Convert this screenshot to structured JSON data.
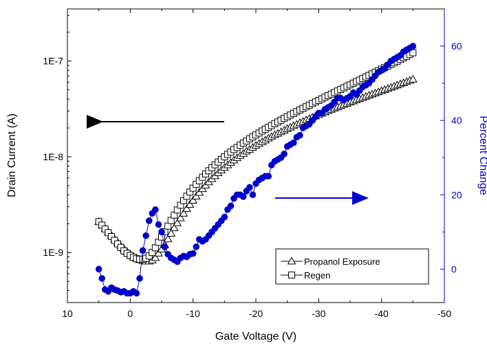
{
  "chart_data": {
    "type": "scatter",
    "xlabel": "Gate Voltage (V)",
    "ylabel_left": "Drain Current (A)",
    "ylabel_right": "Percent Change",
    "xlim": [
      10,
      -50
    ],
    "x_ticks": [
      10,
      0,
      -10,
      -20,
      -30,
      -40,
      -50
    ],
    "x_tick_labels": [
      "10",
      "0",
      "-10",
      "-20",
      "-30",
      "-40",
      "-50"
    ],
    "y_left_scale": "log",
    "y_left_lim": [
      3e-10,
      3.5e-07
    ],
    "y_left_ticks": [
      1e-09,
      1e-08,
      1e-07
    ],
    "y_left_tick_labels": [
      "1E-9",
      "1E-8",
      "1E-7"
    ],
    "y_right_lim": [
      -9,
      70
    ],
    "y_right_ticks": [
      0,
      20,
      40,
      60
    ],
    "y_right_tick_labels": [
      "0",
      "20",
      "40",
      "60"
    ],
    "right_axis_color": "#0000cc",
    "legend_position": "bottom-right",
    "series": [
      {
        "name": "Propanol Exposure",
        "axis": "left",
        "marker": "triangle-open",
        "color": "#000000",
        "x": [
          5,
          4.5,
          4,
          3.5,
          3,
          2.5,
          2,
          1.5,
          1,
          0.5,
          0,
          -0.5,
          -1,
          -1.5,
          -2,
          -2.5,
          -3,
          -3.5,
          -4,
          -4.5,
          -5,
          -5.5,
          -6,
          -6.5,
          -7,
          -7.5,
          -8,
          -8.5,
          -9,
          -9.5,
          -10,
          -10.5,
          -11,
          -11.5,
          -12,
          -12.5,
          -13,
          -13.5,
          -14,
          -14.5,
          -15,
          -15.5,
          -16,
          -16.5,
          -17,
          -17.5,
          -18,
          -18.5,
          -19,
          -19.5,
          -20,
          -20.5,
          -21,
          -21.5,
          -22,
          -22.5,
          -23,
          -23.5,
          -24,
          -24.5,
          -25,
          -25.5,
          -26,
          -26.5,
          -27,
          -27.5,
          -28,
          -28.5,
          -29,
          -29.5,
          -30,
          -30.5,
          -31,
          -31.5,
          -32,
          -32.5,
          -33,
          -33.5,
          -34,
          -34.5,
          -35,
          -35.5,
          -36,
          -36.5,
          -37,
          -37.5,
          -38,
          -38.5,
          -39,
          -39.5,
          -40,
          -40.5,
          -41,
          -41.5,
          -42,
          -42.5,
          -43,
          -43.5,
          -44,
          -44.5,
          -45
        ],
        "y": [
          2.1e-09,
          1.93e-09,
          1.77e-09,
          1.63e-09,
          1.5e-09,
          1.38e-09,
          1.27e-09,
          1.17e-09,
          1.09e-09,
          1.02e-09,
          9.6e-10,
          9.1e-10,
          8.7e-10,
          8.4e-10,
          8.2e-10,
          8.1e-10,
          8.1e-10,
          8.3e-10,
          8.8e-10,
          9.8e-10,
          1.08e-09,
          1.2e-09,
          1.38e-09,
          1.58e-09,
          1.8e-09,
          2.03e-09,
          2.29e-09,
          2.56e-09,
          2.86e-09,
          3.17e-09,
          3.5e-09,
          3.86e-09,
          4.23e-09,
          4.62e-09,
          5.02e-09,
          5.44e-09,
          5.87e-09,
          6.31e-09,
          6.77e-09,
          7.24e-09,
          7.72e-09,
          8.2e-09,
          8.7e-09,
          9.21e-09,
          9.73e-09,
          1.03e-08,
          1.08e-08,
          1.14e-08,
          1.19e-08,
          1.25e-08,
          1.31e-08,
          1.37e-08,
          1.43e-08,
          1.49e-08,
          1.56e-08,
          1.62e-08,
          1.69e-08,
          1.75e-08,
          1.82e-08,
          1.89e-08,
          1.96e-08,
          2.03e-08,
          2.11e-08,
          2.18e-08,
          2.26e-08,
          2.34e-08,
          2.42e-08,
          2.5e-08,
          2.58e-08,
          2.66e-08,
          2.75e-08,
          2.84e-08,
          2.93e-08,
          3.02e-08,
          3.11e-08,
          3.21e-08,
          3.3e-08,
          3.4e-08,
          3.5e-08,
          3.6e-08,
          3.71e-08,
          3.81e-08,
          3.92e-08,
          4.03e-08,
          4.14e-08,
          4.26e-08,
          4.38e-08,
          4.5e-08,
          4.62e-08,
          4.75e-08,
          4.88e-08,
          5.01e-08,
          5.15e-08,
          5.29e-08,
          5.44e-08,
          5.59e-08,
          5.75e-08,
          5.91e-08,
          6.08e-08,
          6.26e-08,
          6.44e-08
        ]
      },
      {
        "name": "Regen",
        "axis": "left",
        "marker": "square-open",
        "color": "#000000",
        "x": [
          5,
          4.5,
          4,
          3.5,
          3,
          2.5,
          2,
          1.5,
          1,
          0.5,
          0,
          -0.5,
          -1,
          -1.5,
          -2,
          -2.5,
          -3,
          -3.5,
          -4,
          -4.5,
          -5,
          -5.5,
          -6,
          -6.5,
          -7,
          -7.5,
          -8,
          -8.5,
          -9,
          -9.5,
          -10,
          -10.5,
          -11,
          -11.5,
          -12,
          -12.5,
          -13,
          -13.5,
          -14,
          -14.5,
          -15,
          -15.5,
          -16,
          -16.5,
          -17,
          -17.5,
          -18,
          -18.5,
          -19,
          -19.5,
          -20,
          -20.5,
          -21,
          -21.5,
          -22,
          -22.5,
          -23,
          -23.5,
          -24,
          -24.5,
          -25,
          -25.5,
          -26,
          -26.5,
          -27,
          -27.5,
          -28,
          -28.5,
          -29,
          -29.5,
          -30,
          -30.5,
          -31,
          -31.5,
          -32,
          -32.5,
          -33,
          -33.5,
          -34,
          -34.5,
          -35,
          -35.5,
          -36,
          -36.5,
          -37,
          -37.5,
          -38,
          -38.5,
          -39,
          -39.5,
          -40,
          -40.5,
          -41,
          -41.5,
          -42,
          -42.5,
          -43,
          -43.5,
          -44,
          -44.5,
          -45
        ],
        "y": [
          2.1e-09,
          1.93e-09,
          1.76e-09,
          1.61e-09,
          1.47e-09,
          1.34e-09,
          1.23e-09,
          1.13e-09,
          1.04e-09,
          9.8e-10,
          9.3e-10,
          8.9e-10,
          8.6e-10,
          8.5e-10,
          8.5e-10,
          8.7e-10,
          9.2e-10,
          1e-09,
          1.12e-09,
          1.28e-09,
          1.45e-09,
          1.65e-09,
          1.89e-09,
          2.16e-09,
          2.46e-09,
          2.78e-09,
          3.12e-09,
          3.48e-09,
          3.87e-09,
          4.28e-09,
          4.7e-09,
          5.15e-09,
          5.62e-09,
          6.11e-09,
          6.62e-09,
          7.14e-09,
          7.68e-09,
          8.24e-09,
          8.81e-09,
          9.39e-09,
          9.98e-09,
          1.06e-08,
          1.12e-08,
          1.19e-08,
          1.25e-08,
          1.32e-08,
          1.39e-08,
          1.46e-08,
          1.54e-08,
          1.61e-08,
          1.69e-08,
          1.77e-08,
          1.86e-08,
          1.94e-08,
          2.03e-08,
          2.12e-08,
          2.22e-08,
          2.31e-08,
          2.41e-08,
          2.52e-08,
          2.62e-08,
          2.73e-08,
          2.84e-08,
          2.96e-08,
          3.08e-08,
          3.2e-08,
          3.33e-08,
          3.46e-08,
          3.6e-08,
          3.74e-08,
          3.88e-08,
          4.03e-08,
          4.19e-08,
          4.35e-08,
          4.51e-08,
          4.69e-08,
          4.87e-08,
          5.05e-08,
          5.25e-08,
          5.45e-08,
          5.65e-08,
          5.87e-08,
          6.09e-08,
          6.32e-08,
          6.57e-08,
          6.82e-08,
          7.08e-08,
          7.35e-08,
          7.63e-08,
          7.92e-08,
          8.23e-08,
          8.55e-08,
          8.88e-08,
          9.23e-08,
          9.59e-08,
          9.97e-08,
          1.04e-07,
          1.08e-07,
          1.12e-07,
          1.17e-07,
          1.22e-07
        ]
      },
      {
        "name": "",
        "axis": "right",
        "marker": "circle-filled",
        "color": "#0000cc",
        "x": [
          5,
          4.5,
          4,
          3.5,
          3,
          2.5,
          2,
          1.5,
          1,
          0.5,
          0,
          -0.5,
          -1,
          -1.5,
          -2,
          -2.5,
          -3,
          -3.5,
          -4,
          -4.5,
          -5,
          -5.5,
          -6,
          -6.5,
          -7,
          -7.5,
          -8,
          -8.5,
          -9,
          -9.5,
          -10,
          -10.5,
          -11,
          -11.5,
          -12,
          -12.5,
          -13,
          -13.5,
          -14,
          -14.5,
          -15,
          -15.5,
          -16,
          -16.5,
          -17,
          -17.5,
          -18,
          -18.5,
          -19,
          -19.5,
          -20,
          -20.5,
          -21,
          -21.5,
          -22,
          -22.5,
          -23,
          -23.5,
          -24,
          -24.5,
          -25,
          -25.5,
          -26,
          -26.5,
          -27,
          -27.5,
          -28,
          -28.5,
          -29,
          -29.5,
          -30,
          -30.5,
          -31,
          -31.5,
          -32,
          -32.5,
          -33,
          -33.5,
          -34,
          -34.5,
          -35,
          -35.5,
          -36,
          -36.5,
          -37,
          -37.5,
          -38,
          -38.5,
          -39,
          -39.5,
          -40,
          -40.5,
          -41,
          -41.5,
          -42,
          -42.5,
          -43,
          -43.5,
          -44,
          -44.5,
          -45
        ],
        "y": [
          0,
          -2.5,
          -5.5,
          -6,
          -5,
          -5.5,
          -5.8,
          -6.2,
          -6,
          -6.5,
          -6.5,
          -6,
          -6.5,
          -2.5,
          5,
          9,
          13,
          15,
          16,
          12,
          10,
          6,
          4,
          3,
          2.5,
          2,
          3,
          3.5,
          3.3,
          4,
          4.2,
          6,
          8,
          7.5,
          8,
          9,
          10,
          11,
          12,
          13,
          14,
          16,
          17,
          19,
          20,
          20,
          19.5,
          21,
          22,
          20,
          23,
          24,
          24.5,
          25,
          25,
          28,
          29,
          29.5,
          30,
          31,
          33,
          33.5,
          34,
          35.5,
          36,
          38,
          38.5,
          39,
          40,
          41,
          42,
          42,
          43,
          43.5,
          44,
          45,
          46,
          46,
          45.5,
          46,
          46.5,
          47.5,
          47,
          48,
          49,
          49.5,
          50,
          51,
          52,
          53,
          53.5,
          54,
          55,
          56,
          56.5,
          57,
          57.5,
          58.5,
          59,
          59.5,
          60
        ]
      }
    ]
  },
  "arrows": [
    {
      "label": "left-axis-arrow",
      "color": "#000000",
      "points_to": "left"
    },
    {
      "label": "right-axis-arrow",
      "color": "#0000cc",
      "points_to": "right"
    }
  ]
}
